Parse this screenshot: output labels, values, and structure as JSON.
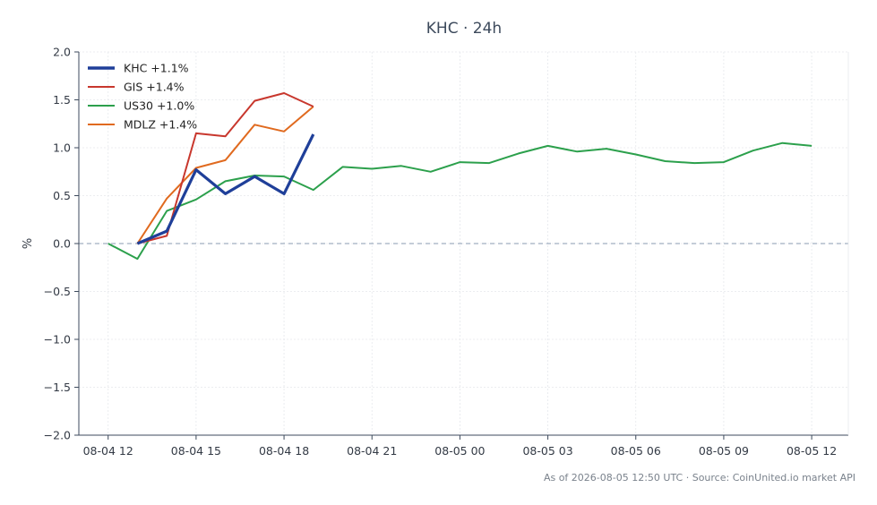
{
  "chart_data": {
    "type": "line",
    "title": "KHC · 24h",
    "xlabel": "",
    "ylabel": "%",
    "ylim": [
      -2.0,
      2.0
    ],
    "yticks": [
      -2.0,
      -1.5,
      -1.0,
      -0.5,
      0.0,
      0.5,
      1.0,
      1.5,
      2.0
    ],
    "ytick_labels": [
      "−2.0",
      "−1.5",
      "−1.0",
      "−0.5",
      "0.0",
      "0.5",
      "1.0",
      "1.5",
      "2.0"
    ],
    "xlim": [
      "08-04 11:00",
      "08-05 13:15"
    ],
    "xticks": [
      "08-04 12:00",
      "08-04 15:00",
      "08-04 18:00",
      "08-04 21:00",
      "08-05 00:00",
      "08-05 03:00",
      "08-05 06:00",
      "08-05 09:00",
      "08-05 12:00"
    ],
    "xtick_labels": [
      "08-04 12",
      "08-04 15",
      "08-04 18",
      "08-04 21",
      "08-05 00",
      "08-05 03",
      "08-05 06",
      "08-05 09",
      "08-05 12"
    ],
    "grid": true,
    "legend_position": "top-left",
    "baseline": 0.0,
    "series": [
      {
        "name": "KHC +1.1%",
        "color": "#1f3f99",
        "x": [
          "08-04 13:00",
          "08-04 14:00",
          "08-04 15:00",
          "08-04 16:00",
          "08-04 17:00",
          "08-04 18:00",
          "08-04 19:00"
        ],
        "y": [
          0.0,
          0.13,
          0.77,
          0.52,
          0.7,
          0.52,
          1.14
        ]
      },
      {
        "name": "GIS +1.4%",
        "color": "#c8372d",
        "x": [
          "08-04 13:00",
          "08-04 14:00",
          "08-04 15:00",
          "08-04 16:00",
          "08-04 17:00",
          "08-04 18:00",
          "08-04 19:00"
        ],
        "y": [
          0.0,
          0.08,
          1.15,
          1.12,
          1.49,
          1.57,
          1.43
        ]
      },
      {
        "name": "US30 +1.0%",
        "color": "#2ca04c",
        "x": [
          "08-04 12:00",
          "08-04 13:00",
          "08-04 14:00",
          "08-04 15:00",
          "08-04 16:00",
          "08-04 17:00",
          "08-04 18:00",
          "08-04 19:00",
          "08-04 20:00",
          "08-04 21:00",
          "08-04 22:00",
          "08-04 23:00",
          "08-05 00:00",
          "08-05 01:00",
          "08-05 02:00",
          "08-05 03:00",
          "08-05 04:00",
          "08-05 05:00",
          "08-05 06:00",
          "08-05 07:00",
          "08-05 08:00",
          "08-05 09:00",
          "08-05 10:00",
          "08-05 11:00",
          "08-05 12:00"
        ],
        "y": [
          0.0,
          -0.16,
          0.34,
          0.46,
          0.65,
          0.71,
          0.7,
          0.56,
          0.8,
          0.78,
          0.81,
          0.75,
          0.85,
          0.84,
          0.94,
          1.02,
          0.96,
          0.99,
          0.93,
          0.86,
          0.84,
          0.85,
          0.97,
          1.05,
          1.02
        ]
      },
      {
        "name": "MDLZ +1.4%",
        "color": "#e06a1f",
        "x": [
          "08-04 13:00",
          "08-04 14:00",
          "08-04 15:00",
          "08-04 16:00",
          "08-04 17:00",
          "08-04 18:00",
          "08-04 19:00"
        ],
        "y": [
          0.0,
          0.47,
          0.79,
          0.87,
          1.24,
          1.17,
          1.43
        ]
      }
    ]
  },
  "footer": "As of 2026-08-05 12:50 UTC · Source: CoinUnited.io market API"
}
